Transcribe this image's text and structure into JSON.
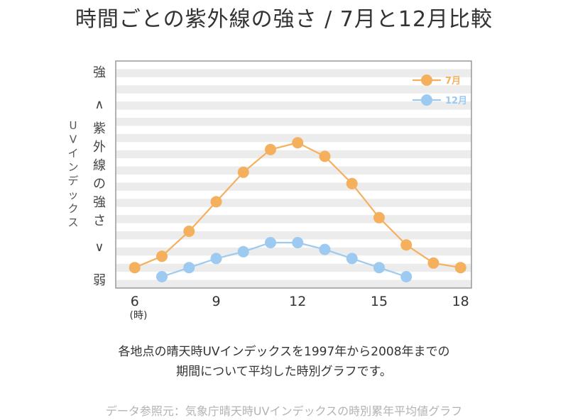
{
  "title": "時間ごとの紫外線の強さ / 7月と12月比較",
  "caption_line1": "各地点の晴天時UVインデックスを1997年から2008年までの",
  "caption_line2": "期間について平均した時別グラフです。",
  "source": "データ参照元：気象庁晴天時UVインデックスの時別累年平均値グラフ",
  "chart_data": {
    "type": "line",
    "title": "時間ごとの紫外線の強さ / 7月と12月比較",
    "xlabel": "(時)",
    "ylabel": "UVインデックス",
    "y_top_label": "強",
    "y_bottom_label": "弱",
    "y_up_symbol": "∧",
    "y_down_symbol": "∨",
    "y_middle_label": "紫外線の強さ",
    "xlim": [
      5.3,
      18.4
    ],
    "ylim": [
      0,
      10
    ],
    "xticks": [
      6,
      9,
      12,
      15,
      18
    ],
    "grid": "horizontal stripes",
    "legend_position": "top-right",
    "series": [
      {
        "name": "7月",
        "color": "#f5b05d",
        "x": [
          6,
          7,
          8,
          9,
          10,
          11,
          12,
          13,
          14,
          15,
          16,
          17,
          18
        ],
        "y": [
          0.9,
          1.4,
          2.5,
          3.8,
          5.1,
          6.1,
          6.4,
          5.8,
          4.6,
          3.1,
          1.9,
          1.1,
          0.9
        ]
      },
      {
        "name": "12月",
        "color": "#9dcaf0",
        "x": [
          7,
          8,
          9,
          10,
          11,
          12,
          13,
          14,
          15,
          16
        ],
        "y": [
          0.5,
          0.9,
          1.3,
          1.6,
          2.0,
          2.0,
          1.7,
          1.3,
          0.9,
          0.5
        ]
      }
    ]
  }
}
